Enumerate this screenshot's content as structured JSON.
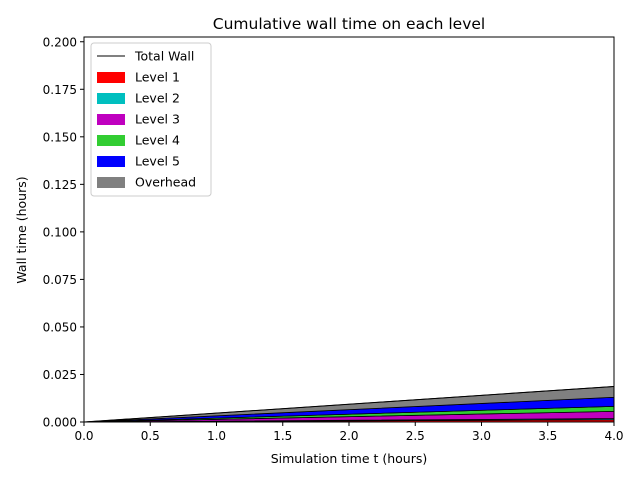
{
  "chart_data": {
    "type": "area",
    "title": "Cumulative wall time on each level",
    "xlabel": "Simulation time t (hours)",
    "ylabel": "Wall time (hours)",
    "xlim": [
      0,
      4
    ],
    "ylim": [
      0,
      0.2025
    ],
    "x_ticks": [
      "0.0",
      "0.5",
      "1.0",
      "1.5",
      "2.0",
      "2.5",
      "3.0",
      "3.5",
      "4.0"
    ],
    "y_ticks": [
      "0.000",
      "0.025",
      "0.050",
      "0.075",
      "0.100",
      "0.125",
      "0.150",
      "0.175",
      "0.200"
    ],
    "grid": false,
    "legend_position": "top-left",
    "x": [
      0,
      4
    ],
    "line": {
      "name": "Total Wall",
      "color": "#000000",
      "values": [
        0,
        0.0187
      ]
    },
    "series": [
      {
        "name": "Level 1",
        "color": "#ff0000",
        "values": [
          0,
          0.0012
        ]
      },
      {
        "name": "Level 2",
        "color": "#00bfbf",
        "values": [
          0,
          0.0006
        ]
      },
      {
        "name": "Level 3",
        "color": "#bf00bf",
        "values": [
          0,
          0.0038
        ]
      },
      {
        "name": "Level 4",
        "color": "#32cd32",
        "values": [
          0,
          0.0026
        ]
      },
      {
        "name": "Level 5",
        "color": "#0000ff",
        "values": [
          0,
          0.0048
        ]
      },
      {
        "name": "Overhead",
        "color": "#808080",
        "values": [
          0,
          0.0057
        ]
      }
    ]
  }
}
